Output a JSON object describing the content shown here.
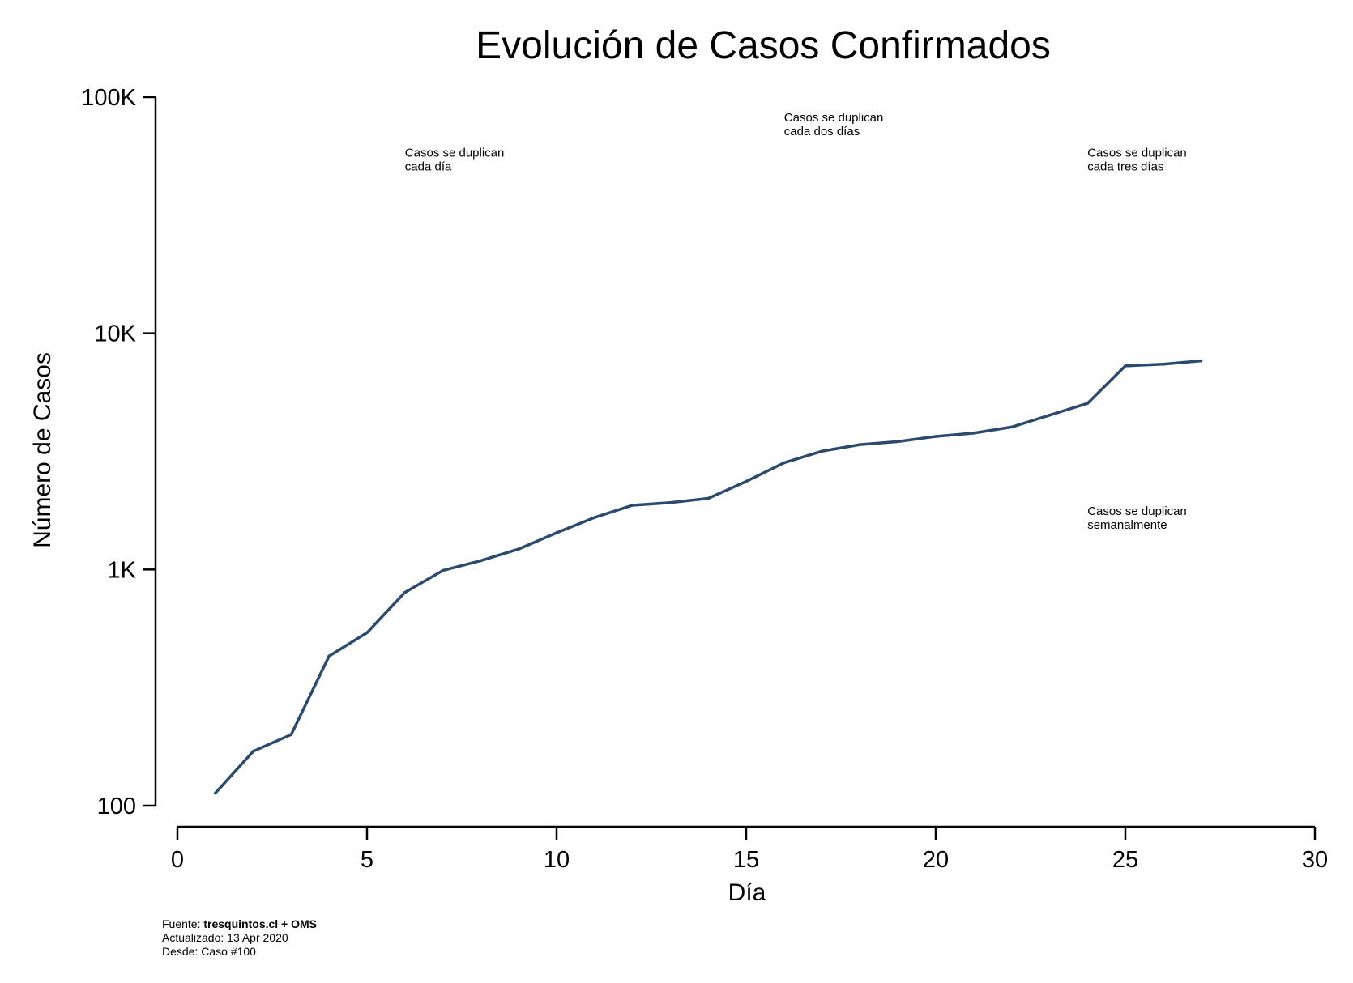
{
  "chart_data": {
    "type": "line",
    "title": "Evolución de Casos Confirmados",
    "xlabel": "Día",
    "ylabel": "Número de Casos",
    "xlim": [
      0,
      30
    ],
    "ylim": [
      100,
      100000
    ],
    "yscale": "log",
    "grid": false,
    "x_ticks": [
      0,
      5,
      10,
      15,
      20,
      25,
      30
    ],
    "x_tick_labels": [
      "0",
      "5",
      "10",
      "15",
      "20",
      "25",
      "30"
    ],
    "y_ticks": [
      100,
      1000,
      10000,
      100000
    ],
    "y_tick_labels": [
      "100",
      "1K",
      "10K",
      "100K"
    ],
    "series": [
      {
        "color": "#2c4a6e",
        "x": [
          1,
          2,
          3,
          4,
          5,
          6,
          7,
          8,
          9,
          10,
          11,
          12,
          13,
          14,
          15,
          16,
          17,
          18,
          19,
          20,
          21,
          22,
          23,
          24,
          25,
          26,
          27
        ],
        "y": [
          113,
          170,
          200,
          430,
          540,
          800,
          990,
          1090,
          1220,
          1430,
          1660,
          1870,
          1920,
          2000,
          2360,
          2830,
          3170,
          3380,
          3480,
          3660,
          3780,
          4010,
          4500,
          5050,
          7280,
          7400,
          7650
        ]
      }
    ],
    "annotations": [
      {
        "lines": [
          "Casos se duplican",
          "cada día"
        ],
        "day": 6,
        "value": 56000
      },
      {
        "lines": [
          "Casos se duplican",
          "cada dos días"
        ],
        "day": 16,
        "value": 79000
      },
      {
        "lines": [
          "Casos se duplican",
          "cada tres días"
        ],
        "day": 24,
        "value": 56000
      },
      {
        "lines": [
          "Casos se duplican",
          "semanalmente"
        ],
        "day": 24,
        "value": 1700
      }
    ]
  },
  "footer": {
    "source_prefix": "Fuente: ",
    "source_bold": "tresquintos.cl + OMS",
    "updated": "Actualizado: 13 Apr 2020",
    "since": "Desde: Caso #100"
  }
}
